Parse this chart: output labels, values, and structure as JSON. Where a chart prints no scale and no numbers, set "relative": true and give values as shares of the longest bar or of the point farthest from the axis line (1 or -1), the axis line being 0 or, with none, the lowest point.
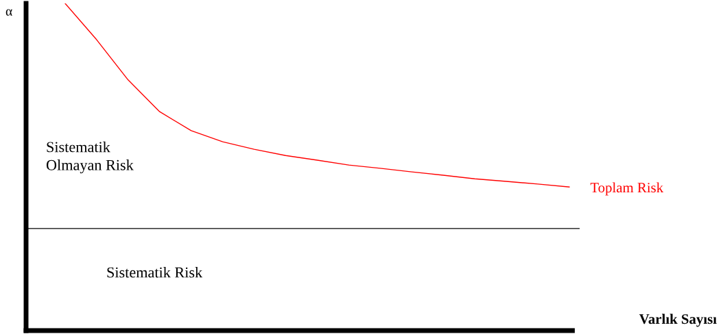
{
  "chart_data": {
    "type": "line",
    "relative": true,
    "xlabel": "Varlık Sayısı",
    "ylabel": "α",
    "categories": [
      null,
      null,
      null,
      null,
      null,
      null,
      null,
      null,
      null,
      null,
      null,
      null,
      null,
      null,
      null,
      null,
      null
    ],
    "series": [
      {
        "name": "Toplam Risk",
        "color": "#ff0000",
        "values": [
          1.0,
          0.889,
          0.766,
          0.669,
          0.611,
          0.577,
          0.554,
          0.535,
          0.521,
          0.506,
          0.496,
          0.485,
          0.475,
          0.464,
          0.456,
          0.448,
          0.439
        ]
      }
    ],
    "ref_lines": [
      {
        "axis": "y",
        "value": 0.312,
        "color": "#000000",
        "line_style": "solid"
      }
    ],
    "annotations": [
      "Sistematik\nOlmayan Risk",
      "Sistematik Risk"
    ],
    "legend": false,
    "marker": "none",
    "line_style": "solid"
  }
}
